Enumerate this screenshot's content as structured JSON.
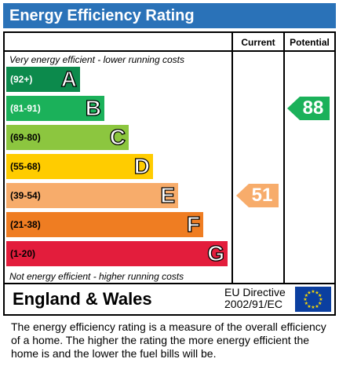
{
  "header": {
    "title": "Energy Efficiency Rating"
  },
  "columns": {
    "current": "Current",
    "potential": "Potential"
  },
  "notes": {
    "top": "Very energy efficient - lower running costs",
    "bottom": "Not energy efficient - higher running costs"
  },
  "chart_data": {
    "type": "bar",
    "categories": [
      "A",
      "B",
      "C",
      "D",
      "E",
      "F",
      "G"
    ],
    "ranges": [
      "(92+)",
      "(81-91)",
      "(69-80)",
      "(55-68)",
      "(39-54)",
      "(21-38)",
      "(1-20)"
    ],
    "colors": [
      "#0c8a4c",
      "#1bb15a",
      "#8cc63f",
      "#ffcc00",
      "#f7ac6b",
      "#ef7d22",
      "#e31d3c"
    ],
    "current": {
      "value": "51",
      "band": "E",
      "color": "#f7ac6b"
    },
    "potential": {
      "value": "88",
      "band": "B",
      "color": "#1bb15a"
    }
  },
  "footer": {
    "country": "England & Wales",
    "directive_line1": "EU Directive",
    "directive_line2": "2002/91/EC"
  },
  "description": "The energy efficiency rating is a measure of the overall efficiency of a home.  The higher the rating the more energy efficient the home is and the lower the fuel bills will be."
}
